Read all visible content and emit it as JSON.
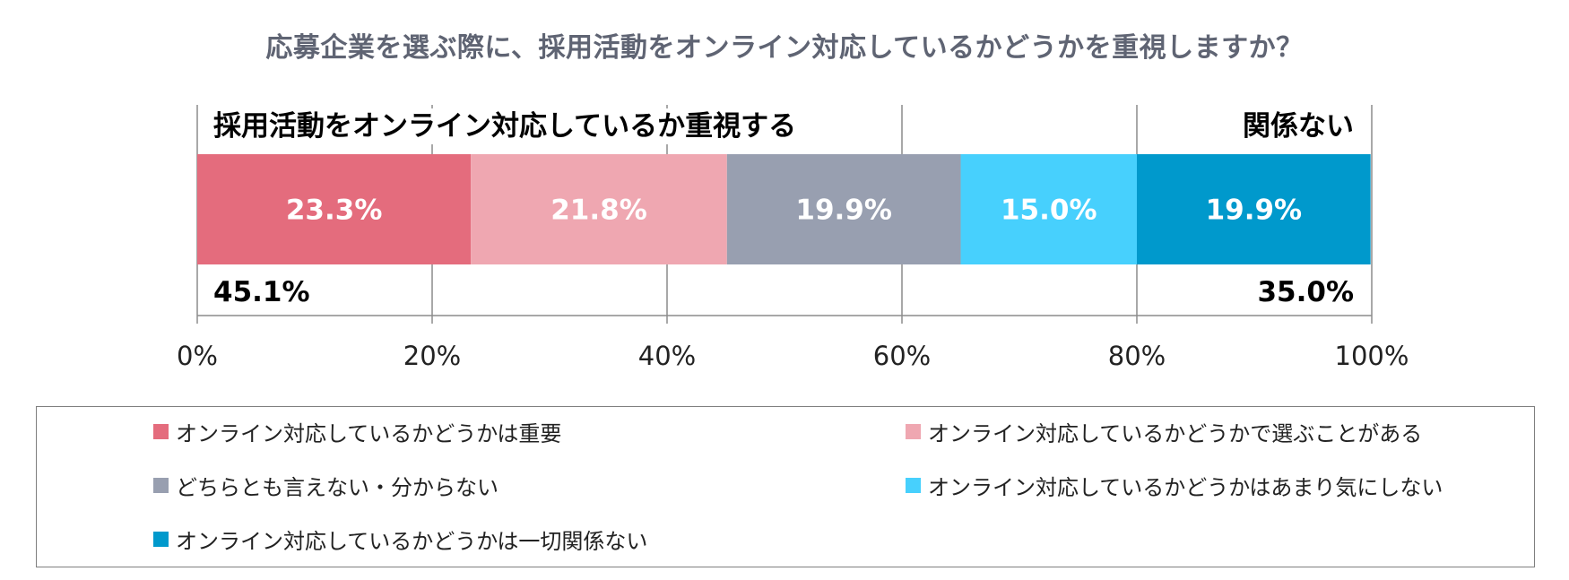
{
  "chart_data": {
    "type": "bar",
    "orientation": "horizontal-stacked-100",
    "title": "応募企業を選ぶ際に、採用活動をオンライン対応しているかどうかを重視しますか？",
    "series": [
      {
        "name": "オンライン対応しているかどうかは重要",
        "value": 23.3,
        "label": "23.3%",
        "color": "#e46c7d"
      },
      {
        "name": "オンライン対応しているかどうかで選ぶことがある",
        "value": 21.8,
        "label": "21.8%",
        "color": "#efa7b1"
      },
      {
        "name": "どちらとも言えない・分からない",
        "value": 19.9,
        "label": "19.9%",
        "color": "#989fb0"
      },
      {
        "name": "オンライン対応しているかどうかはあまり気にしない",
        "value": 15.0,
        "label": "15.0%",
        "color": "#47d0fd"
      },
      {
        "name": "オンライン対応しているかどうかは一切関係ない",
        "value": 19.9,
        "label": "19.9%",
        "color": "#0099cc"
      }
    ],
    "xlim": [
      0,
      100
    ],
    "xticks": [
      "0%",
      "20%",
      "40%",
      "60%",
      "80%",
      "100%"
    ],
    "grid": true,
    "legend_position": "bottom",
    "annotations": {
      "left_group_label": "採用活動をオンライン対応しているか重視する",
      "left_group_total": "45.1%",
      "right_group_label": "関係ない",
      "right_group_total": "35.0%"
    }
  }
}
